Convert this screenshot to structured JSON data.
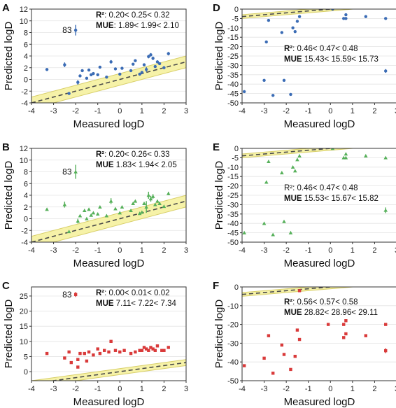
{
  "figure": {
    "colors": {
      "blue": "#3b6cb5",
      "green": "#56b05a",
      "red": "#d93a3a",
      "band": "#f6f2a8",
      "bandEdge": "#d8cf6a",
      "dash": "#4a4a4a"
    }
  },
  "chart_data": [
    {
      "panel": "A",
      "type": "scatter",
      "marker": "circle",
      "color": "#3b6cb5",
      "xlabel": "Measured logD",
      "ylabel": "Predicted logD",
      "xlim": [
        -4,
        3
      ],
      "ylim": [
        -4,
        12
      ],
      "xticks": [
        "-4",
        "-3",
        "-2",
        "-1",
        "0",
        "1",
        "2",
        "3"
      ],
      "yticks": [
        "-4",
        "-2",
        "0",
        "2",
        "4",
        "6",
        "8",
        "10",
        "12"
      ],
      "stats": {
        "r2_label": "R²",
        "r2_text": ": 0.20< 0.25< 0.32",
        "mue_label": "MUE",
        "mue_text": ": 1.89< 1.99< 2.10"
      },
      "annotation": "83",
      "points": [
        [
          -3.3,
          1.7,
          0
        ],
        [
          -2.5,
          2.5,
          0.4
        ],
        [
          -2.3,
          -2.4,
          0
        ],
        [
          -2.0,
          8.4,
          0.9
        ],
        [
          -1.9,
          -0.5,
          0.4
        ],
        [
          -1.8,
          0.6,
          0
        ],
        [
          -1.7,
          1.5,
          0
        ],
        [
          -1.5,
          0.2,
          0
        ],
        [
          -1.4,
          1.6,
          0
        ],
        [
          -1.3,
          0.8,
          0
        ],
        [
          -1.2,
          1.0,
          0
        ],
        [
          -1.0,
          0.8,
          0
        ],
        [
          -0.9,
          2.1,
          0
        ],
        [
          -0.6,
          0.4,
          0
        ],
        [
          -0.4,
          3.0,
          0.3
        ],
        [
          -0.2,
          1.8,
          0
        ],
        [
          0.0,
          0.9,
          0
        ],
        [
          0.1,
          1.9,
          0
        ],
        [
          0.5,
          1.5,
          0
        ],
        [
          0.6,
          2.6,
          0
        ],
        [
          0.7,
          3.2,
          0
        ],
        [
          0.9,
          0.9,
          0
        ],
        [
          1.0,
          1.2,
          0
        ],
        [
          1.1,
          2.5,
          0
        ],
        [
          1.2,
          1.7,
          0.4
        ],
        [
          1.3,
          3.9,
          0.3
        ],
        [
          1.4,
          4.2,
          0.3
        ],
        [
          1.5,
          3.6,
          0.3
        ],
        [
          1.6,
          2.2,
          0
        ],
        [
          1.7,
          3.0,
          0
        ],
        [
          1.8,
          2.7,
          0
        ],
        [
          2.0,
          2.0,
          0
        ],
        [
          2.2,
          4.4,
          0.3
        ]
      ],
      "band_width": 1
    },
    {
      "panel": "D",
      "type": "scatter",
      "marker": "circle",
      "color": "#3b6cb5",
      "xlabel": "Measured logD",
      "ylabel": "Predicted logD",
      "xlim": [
        -4,
        3
      ],
      "ylim": [
        -50,
        0
      ],
      "xticks": [
        "-4",
        "-3",
        "-2",
        "-1",
        "0",
        "1",
        "2",
        "3"
      ],
      "yticks": [
        "-50",
        "-45",
        "-40",
        "-35",
        "-30",
        "-25",
        "-20",
        "-15",
        "-10",
        "-5",
        "0"
      ],
      "stats": {
        "r2_label": "R²",
        "r2_text": ": 0.46< 0.47< 0.48",
        "mue_label": "MUE",
        "mue_text": " 15.43< 15.59< 15.73"
      },
      "annotation": "",
      "points": [
        [
          -3.9,
          -44,
          0
        ],
        [
          -3.0,
          -38,
          0
        ],
        [
          -2.9,
          -17.5,
          0
        ],
        [
          -2.8,
          -6,
          0
        ],
        [
          -2.6,
          -46,
          0
        ],
        [
          -2.2,
          -12.5,
          0
        ],
        [
          -2.1,
          -38,
          0
        ],
        [
          -1.8,
          -45.5,
          0
        ],
        [
          -1.7,
          -10,
          0
        ],
        [
          -1.6,
          -12,
          0
        ],
        [
          -1.5,
          -6.5,
          0
        ],
        [
          -1.4,
          -4,
          0
        ],
        [
          0.1,
          0,
          0
        ],
        [
          0.6,
          -5,
          0
        ],
        [
          0.7,
          -3,
          0
        ],
        [
          0.7,
          -5,
          0
        ],
        [
          1.6,
          -4,
          0
        ],
        [
          2.5,
          -5,
          0
        ],
        [
          2.5,
          -33,
          1
        ]
      ],
      "band_width": 1
    },
    {
      "panel": "B",
      "type": "scatter",
      "marker": "triangle",
      "color": "#56b05a",
      "xlabel": "Measured logD",
      "ylabel": "Predicted logD",
      "xlim": [
        -4,
        3
      ],
      "ylim": [
        -4,
        12
      ],
      "xticks": [
        "-4",
        "-3",
        "-2",
        "-1",
        "0",
        "1",
        "2",
        "3"
      ],
      "yticks": [
        "-4",
        "-2",
        "0",
        "2",
        "4",
        "6",
        "8",
        "10",
        "12"
      ],
      "stats": {
        "r2_label": "R²",
        "r2_text": ": 0.20< 0.26< 0.33",
        "mue_label": "MUE",
        "mue_text": " 1.83< 1.94< 2.05"
      },
      "annotation": "83",
      "points": [
        [
          -3.3,
          1.6,
          0
        ],
        [
          -2.5,
          2.4,
          0.5
        ],
        [
          -2.3,
          -2.2,
          0
        ],
        [
          -2.0,
          8.0,
          1.2
        ],
        [
          -1.9,
          -0.4,
          0.4
        ],
        [
          -1.8,
          0.5,
          0
        ],
        [
          -1.6,
          1.4,
          0
        ],
        [
          -1.5,
          0.0,
          0
        ],
        [
          -1.4,
          1.6,
          0
        ],
        [
          -1.3,
          0.6,
          0
        ],
        [
          -1.2,
          1.0,
          0
        ],
        [
          -1.0,
          0.8,
          0
        ],
        [
          -0.9,
          2.0,
          0
        ],
        [
          -0.6,
          0.5,
          0
        ],
        [
          -0.4,
          3.0,
          0.5
        ],
        [
          -0.2,
          1.7,
          0
        ],
        [
          0.0,
          1.0,
          0
        ],
        [
          0.1,
          2.0,
          0
        ],
        [
          0.5,
          1.4,
          0
        ],
        [
          0.6,
          2.6,
          0
        ],
        [
          0.7,
          3.0,
          0
        ],
        [
          0.9,
          0.9,
          0
        ],
        [
          1.0,
          1.1,
          0
        ],
        [
          1.1,
          2.6,
          0
        ],
        [
          1.2,
          2.0,
          1.0
        ],
        [
          1.3,
          4.0,
          0.6
        ],
        [
          1.4,
          3.4,
          0.5
        ],
        [
          1.5,
          3.8,
          0.4
        ],
        [
          1.6,
          2.4,
          0
        ],
        [
          1.7,
          3.0,
          0
        ],
        [
          1.8,
          2.6,
          0
        ],
        [
          2.0,
          2.1,
          0
        ],
        [
          2.2,
          4.3,
          0.3
        ]
      ],
      "band_width": 1
    },
    {
      "panel": "E",
      "type": "scatter",
      "marker": "triangle",
      "color": "#56b05a",
      "xlabel": "Measured logD",
      "ylabel": "Predicted logD",
      "xlim": [
        -4,
        3
      ],
      "ylim": [
        -50,
        0
      ],
      "xticks": [
        "-4",
        "-3",
        "-2",
        "-1",
        "0",
        "1",
        "2",
        "3"
      ],
      "yticks": [
        "-50",
        "-45",
        "-40",
        "-35",
        "-30",
        "-25",
        "-20",
        "-15",
        "-10",
        "-5",
        "0"
      ],
      "stats": {
        "r2_label": "",
        "r2_text": "R²: 0.46< 0.47< 0.48",
        "mue_label": "MUE",
        "mue_text": " 15.53< 15.67< 15.82"
      },
      "annotation": "",
      "points": [
        [
          -3.9,
          -45,
          0
        ],
        [
          -3.0,
          -40,
          0
        ],
        [
          -2.9,
          -18,
          0
        ],
        [
          -2.8,
          -7,
          0
        ],
        [
          -2.6,
          -46,
          0
        ],
        [
          -2.2,
          -13,
          0
        ],
        [
          -2.1,
          -39,
          0
        ],
        [
          -1.8,
          -45,
          0
        ],
        [
          -1.7,
          -10,
          0
        ],
        [
          -1.6,
          -12,
          0
        ],
        [
          -1.5,
          -6,
          0
        ],
        [
          -1.4,
          -4,
          0
        ],
        [
          0.1,
          0,
          0
        ],
        [
          0.6,
          -5,
          0
        ],
        [
          0.7,
          -3,
          0
        ],
        [
          0.7,
          -5,
          0
        ],
        [
          1.6,
          -4,
          0
        ],
        [
          2.5,
          -5,
          0
        ],
        [
          2.5,
          -33,
          1.5
        ]
      ],
      "band_width": 1
    },
    {
      "panel": "C",
      "type": "scatter",
      "marker": "square",
      "color": "#d93a3a",
      "xlabel": "Measured logD",
      "ylabel": "Predicted logD",
      "xlim": [
        -4,
        3
      ],
      "ylim": [
        -3,
        28
      ],
      "xticks": [
        "-4",
        "-3",
        "-2",
        "-1",
        "0",
        "1",
        "2",
        "3"
      ],
      "yticks": [
        "0",
        "5",
        "10",
        "15",
        "20",
        "25"
      ],
      "stats": {
        "r2_label": "R²",
        "r2_text": ": 0.00< 0.01< 0.02",
        "mue_label": "MUE",
        "mue_text": " 7.11< 7.22< 7.34"
      },
      "annotation": "83",
      "points": [
        [
          -3.3,
          6.0,
          0
        ],
        [
          -2.5,
          4.5,
          0
        ],
        [
          -2.3,
          6.5,
          0
        ],
        [
          -2.2,
          3.0,
          0
        ],
        [
          -2.0,
          25.5,
          0.8
        ],
        [
          -1.9,
          4.0,
          0
        ],
        [
          -1.8,
          6.0,
          0
        ],
        [
          -1.6,
          6.0,
          0
        ],
        [
          -1.5,
          3.5,
          0
        ],
        [
          -1.4,
          6.5,
          0
        ],
        [
          -1.2,
          5.5,
          0
        ],
        [
          -1.0,
          7.5,
          0
        ],
        [
          -0.9,
          6.0,
          0
        ],
        [
          -0.7,
          7.0,
          0
        ],
        [
          -0.5,
          6.5,
          0
        ],
        [
          -0.4,
          10.0,
          0.4
        ],
        [
          -0.2,
          7.0,
          0
        ],
        [
          0.0,
          6.5,
          0
        ],
        [
          0.2,
          7.0,
          0
        ],
        [
          0.5,
          6.0,
          0
        ],
        [
          0.7,
          6.5,
          0
        ],
        [
          0.9,
          7.0,
          0
        ],
        [
          1.0,
          7.0,
          0
        ],
        [
          1.1,
          8.0,
          0
        ],
        [
          1.2,
          7.5,
          0
        ],
        [
          1.3,
          7.0,
          0
        ],
        [
          1.4,
          8.0,
          0
        ],
        [
          1.5,
          7.5,
          0
        ],
        [
          1.6,
          7.0,
          0
        ],
        [
          1.7,
          8.5,
          0
        ],
        [
          1.9,
          7.0,
          0
        ],
        [
          2.0,
          7.0,
          0
        ],
        [
          2.2,
          8.0,
          0
        ],
        [
          -1.9,
          1.5,
          0
        ]
      ],
      "band_width": 1
    },
    {
      "panel": "F",
      "type": "scatter",
      "marker": "square",
      "color": "#d93a3a",
      "xlabel": "Measured logD",
      "ylabel": "Predicted logD",
      "xlim": [
        -4,
        3
      ],
      "ylim": [
        -50,
        0
      ],
      "xticks": [
        "-4",
        "-3",
        "-2",
        "-1",
        "0",
        "1",
        "2",
        "3"
      ],
      "yticks": [
        "-50",
        "-40",
        "-30",
        "-20",
        "-10",
        "0"
      ],
      "stats": {
        "r2_label": "R²",
        "r2_text": ": 0.56< 0.57< 0.58",
        "mue_label": "MUE",
        "mue_text": " 28.82< 28.96< 29.11"
      },
      "annotation": "",
      "points": [
        [
          -3.9,
          -42,
          0
        ],
        [
          -3.0,
          -38,
          0
        ],
        [
          -2.8,
          -26,
          0
        ],
        [
          -2.6,
          -46,
          0
        ],
        [
          -2.2,
          -31,
          0
        ],
        [
          -2.1,
          -36,
          0
        ],
        [
          -1.8,
          -44,
          0
        ],
        [
          -1.6,
          -37,
          0
        ],
        [
          -1.5,
          -23,
          0
        ],
        [
          -1.4,
          -28,
          0
        ],
        [
          -1.4,
          -2,
          0
        ],
        [
          -0.1,
          -20,
          0
        ],
        [
          0.6,
          -20,
          0
        ],
        [
          0.6,
          -27,
          0
        ],
        [
          0.7,
          -18,
          0
        ],
        [
          0.7,
          -25,
          0
        ],
        [
          1.6,
          -26,
          0
        ],
        [
          2.5,
          -20,
          0
        ],
        [
          2.5,
          -34,
          1.3
        ]
      ],
      "band_width": 1
    }
  ]
}
